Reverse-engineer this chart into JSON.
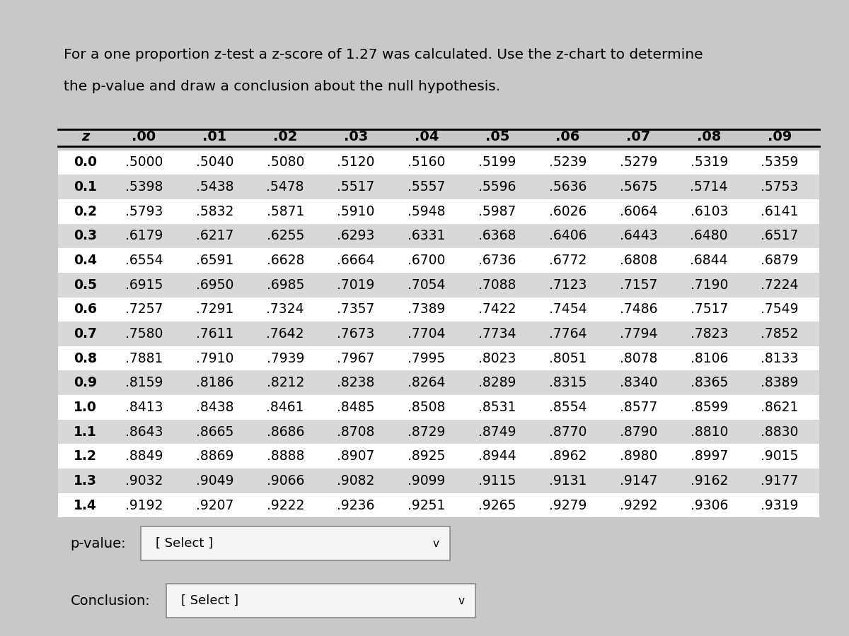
{
  "title_line1": "For a one proportion z-test a z-score of 1.27 was calculated. Use the z-chart to determine",
  "title_line2": "the p-value and draw a conclusion about the null hypothesis.",
  "bg_color": "#c8c8c8",
  "panel_color": "#e8e8e8",
  "col_headers": [
    "z",
    ".00",
    ".01",
    ".02",
    ".03",
    ".04",
    ".05",
    ".06",
    ".07",
    ".08",
    ".09"
  ],
  "rows": [
    {
      "z": "0.0",
      "vals": [
        ".5000",
        ".5040",
        ".5080",
        ".5120",
        ".5160",
        ".5199",
        ".5239",
        ".5279",
        ".5319",
        ".5359"
      ]
    },
    {
      "z": "0.1",
      "vals": [
        ".5398",
        ".5438",
        ".5478",
        ".5517",
        ".5557",
        ".5596",
        ".5636",
        ".5675",
        ".5714",
        ".5753"
      ]
    },
    {
      "z": "0.2",
      "vals": [
        ".5793",
        ".5832",
        ".5871",
        ".5910",
        ".5948",
        ".5987",
        ".6026",
        ".6064",
        ".6103",
        ".6141"
      ]
    },
    {
      "z": "0.3",
      "vals": [
        ".6179",
        ".6217",
        ".6255",
        ".6293",
        ".6331",
        ".6368",
        ".6406",
        ".6443",
        ".6480",
        ".6517"
      ]
    },
    {
      "z": "0.4",
      "vals": [
        ".6554",
        ".6591",
        ".6628",
        ".6664",
        ".6700",
        ".6736",
        ".6772",
        ".6808",
        ".6844",
        ".6879"
      ]
    },
    {
      "z": "0.5",
      "vals": [
        ".6915",
        ".6950",
        ".6985",
        ".7019",
        ".7054",
        ".7088",
        ".7123",
        ".7157",
        ".7190",
        ".7224"
      ]
    },
    {
      "z": "0.6",
      "vals": [
        ".7257",
        ".7291",
        ".7324",
        ".7357",
        ".7389",
        ".7422",
        ".7454",
        ".7486",
        ".7517",
        ".7549"
      ]
    },
    {
      "z": "0.7",
      "vals": [
        ".7580",
        ".7611",
        ".7642",
        ".7673",
        ".7704",
        ".7734",
        ".7764",
        ".7794",
        ".7823",
        ".7852"
      ]
    },
    {
      "z": "0.8",
      "vals": [
        ".7881",
        ".7910",
        ".7939",
        ".7967",
        ".7995",
        ".8023",
        ".8051",
        ".8078",
        ".8106",
        ".8133"
      ]
    },
    {
      "z": "0.9",
      "vals": [
        ".8159",
        ".8186",
        ".8212",
        ".8238",
        ".8264",
        ".8289",
        ".8315",
        ".8340",
        ".8365",
        ".8389"
      ]
    },
    {
      "z": "1.0",
      "vals": [
        ".8413",
        ".8438",
        ".8461",
        ".8485",
        ".8508",
        ".8531",
        ".8554",
        ".8577",
        ".8599",
        ".8621"
      ]
    },
    {
      "z": "1.1",
      "vals": [
        ".8643",
        ".8665",
        ".8686",
        ".8708",
        ".8729",
        ".8749",
        ".8770",
        ".8790",
        ".8810",
        ".8830"
      ]
    },
    {
      "z": "1.2",
      "vals": [
        ".8849",
        ".8869",
        ".8888",
        ".8907",
        ".8925",
        ".8944",
        ".8962",
        ".8980",
        ".8997",
        ".9015"
      ]
    },
    {
      "z": "1.3",
      "vals": [
        ".9032",
        ".9049",
        ".9066",
        ".9082",
        ".9099",
        ".9115",
        ".9131",
        ".9147",
        ".9162",
        ".9177"
      ]
    },
    {
      "z": "1.4",
      "vals": [
        ".9192",
        ".9207",
        ".9222",
        ".9236",
        ".9251",
        ".9265",
        ".9279",
        ".9292",
        ".9306",
        ".9319"
      ]
    }
  ],
  "row_colors": [
    "#ffffff",
    "#d8d8d8",
    "#ffffff",
    "#d8d8d8",
    "#ffffff",
    "#d8d8d8",
    "#ffffff",
    "#d8d8d8",
    "#ffffff",
    "#d8d8d8",
    "#ffffff",
    "#d8d8d8",
    "#ffffff",
    "#d8d8d8",
    "#ffffff"
  ],
  "pvalue_label": "p-value:",
  "pvalue_box_text": "[ Select ]",
  "conclusion_label": "Conclusion:",
  "conclusion_box_text": "[ Select ]",
  "title_fontsize": 14.5,
  "table_fontsize": 13.5,
  "header_fontsize": 14
}
